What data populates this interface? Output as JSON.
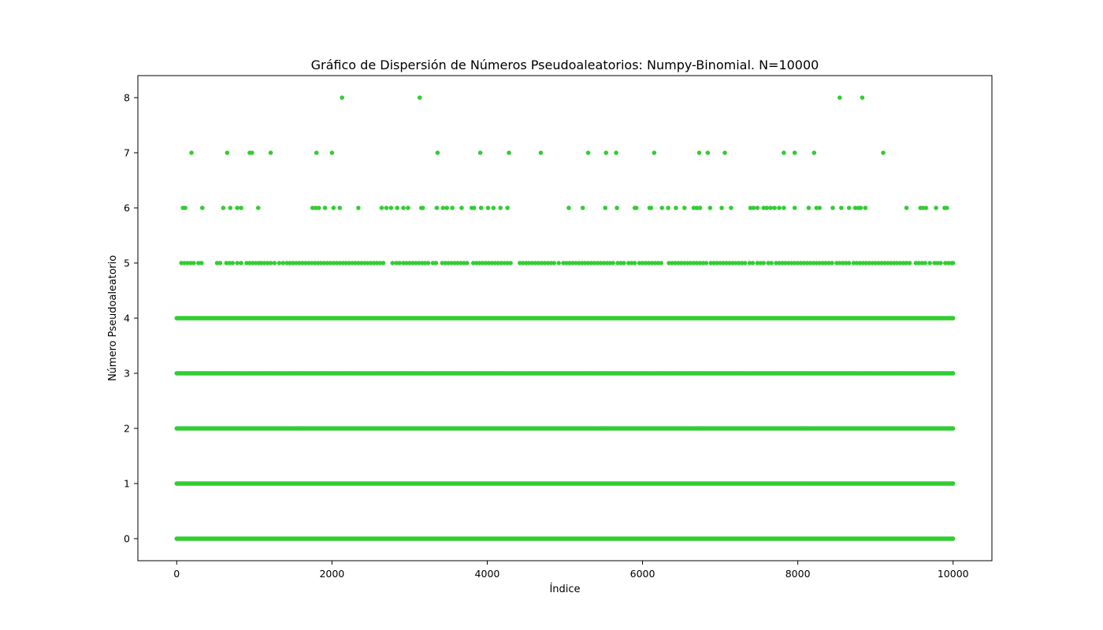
{
  "chart_data": {
    "type": "scatter",
    "title": "Gráfico de Dispersión de Números Pseudoaleatorios: Numpy-Binomial. N=10000",
    "xlabel": "Índice",
    "ylabel": "Número Pseudoaleatorio",
    "n": 10000,
    "xlim": [
      -500,
      10500
    ],
    "ylim": [
      -0.4,
      8.4
    ],
    "x_ticks": [
      0,
      2000,
      4000,
      6000,
      8000,
      10000
    ],
    "x_tick_labels": [
      "0",
      "2000",
      "4000",
      "6000",
      "8000",
      "10000"
    ],
    "y_ticks": [
      0,
      1,
      2,
      3,
      4,
      5,
      6,
      7,
      8
    ],
    "y_tick_labels": [
      "0",
      "1",
      "2",
      "3",
      "4",
      "5",
      "6",
      "7",
      "8"
    ],
    "grid": false,
    "color": "#32cd32",
    "series": [
      {
        "levels_dense": [
          0,
          1,
          2,
          3,
          4
        ],
        "level_5_x": [
          60,
          100,
          140,
          180,
          220,
          280,
          320,
          520,
          560,
          640,
          680,
          720,
          780,
          830,
          900,
          940,
          980,
          1020,
          1060,
          1090,
          1130,
          1170,
          1210,
          1260,
          1320,
          1370,
          1420,
          1460,
          1500,
          1540,
          1580,
          1620,
          1660,
          1700,
          1740,
          1780,
          1820,
          1860,
          1900,
          1940,
          1980,
          2020,
          2060,
          2100,
          2140,
          2180,
          2220,
          2260,
          2300,
          2340,
          2380,
          2420,
          2460,
          2500,
          2540,
          2580,
          2620,
          2660,
          2780,
          2830,
          2870,
          2920,
          2960,
          3000,
          3040,
          3080,
          3120,
          3160,
          3200,
          3240,
          3300,
          3340,
          3420,
          3460,
          3500,
          3540,
          3580,
          3620,
          3660,
          3700,
          3740,
          3820,
          3860,
          3900,
          3940,
          3980,
          4020,
          4060,
          4100,
          4140,
          4180,
          4220,
          4260,
          4300,
          4420,
          4460,
          4500,
          4540,
          4580,
          4620,
          4660,
          4700,
          4740,
          4780,
          4820,
          4860,
          4920,
          4980,
          5020,
          5060,
          5100,
          5140,
          5180,
          5220,
          5260,
          5300,
          5340,
          5380,
          5420,
          5460,
          5500,
          5540,
          5580,
          5620,
          5680,
          5720,
          5760,
          5820,
          5860,
          5900,
          5960,
          6000,
          6040,
          6080,
          6120,
          6160,
          6200,
          6240,
          6340,
          6380,
          6420,
          6460,
          6500,
          6540,
          6580,
          6620,
          6660,
          6700,
          6740,
          6780,
          6820,
          6880,
          6920,
          6960,
          7000,
          7040,
          7080,
          7120,
          7160,
          7200,
          7240,
          7280,
          7320,
          7380,
          7420,
          7480,
          7520,
          7560,
          7620,
          7660,
          7720,
          7760,
          7800,
          7840,
          7880,
          7920,
          7960,
          8000,
          8040,
          8080,
          8120,
          8160,
          8200,
          8240,
          8280,
          8320,
          8360,
          8400,
          8440,
          8500,
          8540,
          8580,
          8620,
          8660,
          8720,
          8760,
          8800,
          8840,
          8880,
          8920,
          8960,
          9000,
          9040,
          9080,
          9120,
          9160,
          9200,
          9240,
          9280,
          9320,
          9360,
          9400,
          9440,
          9520,
          9560,
          9600,
          9640,
          9700,
          9760,
          9800,
          9840,
          9900,
          9940,
          9980,
          10000
        ],
        "level_6_x": [
          80,
          110,
          330,
          600,
          690,
          780,
          830,
          1050,
          1750,
          1790,
          1830,
          1910,
          2020,
          2100,
          2340,
          2640,
          2700,
          2760,
          2840,
          2920,
          2980,
          3150,
          3170,
          3350,
          3430,
          3480,
          3550,
          3670,
          3800,
          3830,
          3920,
          4010,
          4080,
          4170,
          4260,
          5050,
          5230,
          5520,
          5670,
          5900,
          5920,
          6090,
          6110,
          6250,
          6330,
          6430,
          6540,
          6660,
          6700,
          6740,
          6870,
          7020,
          7140,
          7390,
          7430,
          7480,
          7560,
          7600,
          7650,
          7700,
          7760,
          7820,
          7960,
          8140,
          8240,
          8280,
          8450,
          8560,
          8660,
          8740,
          8780,
          8810,
          8870,
          9400,
          9580,
          9610,
          9650,
          9780,
          9890,
          9920
        ],
        "level_7_x": [
          190,
          650,
          940,
          970,
          1210,
          1800,
          2000,
          3360,
          3910,
          4280,
          4690,
          5300,
          5530,
          5660,
          6150,
          6730,
          6840,
          7060,
          7820,
          7960,
          8210,
          9100
        ],
        "level_8_x": [
          2130,
          3130,
          8540,
          8830
        ]
      }
    ]
  }
}
